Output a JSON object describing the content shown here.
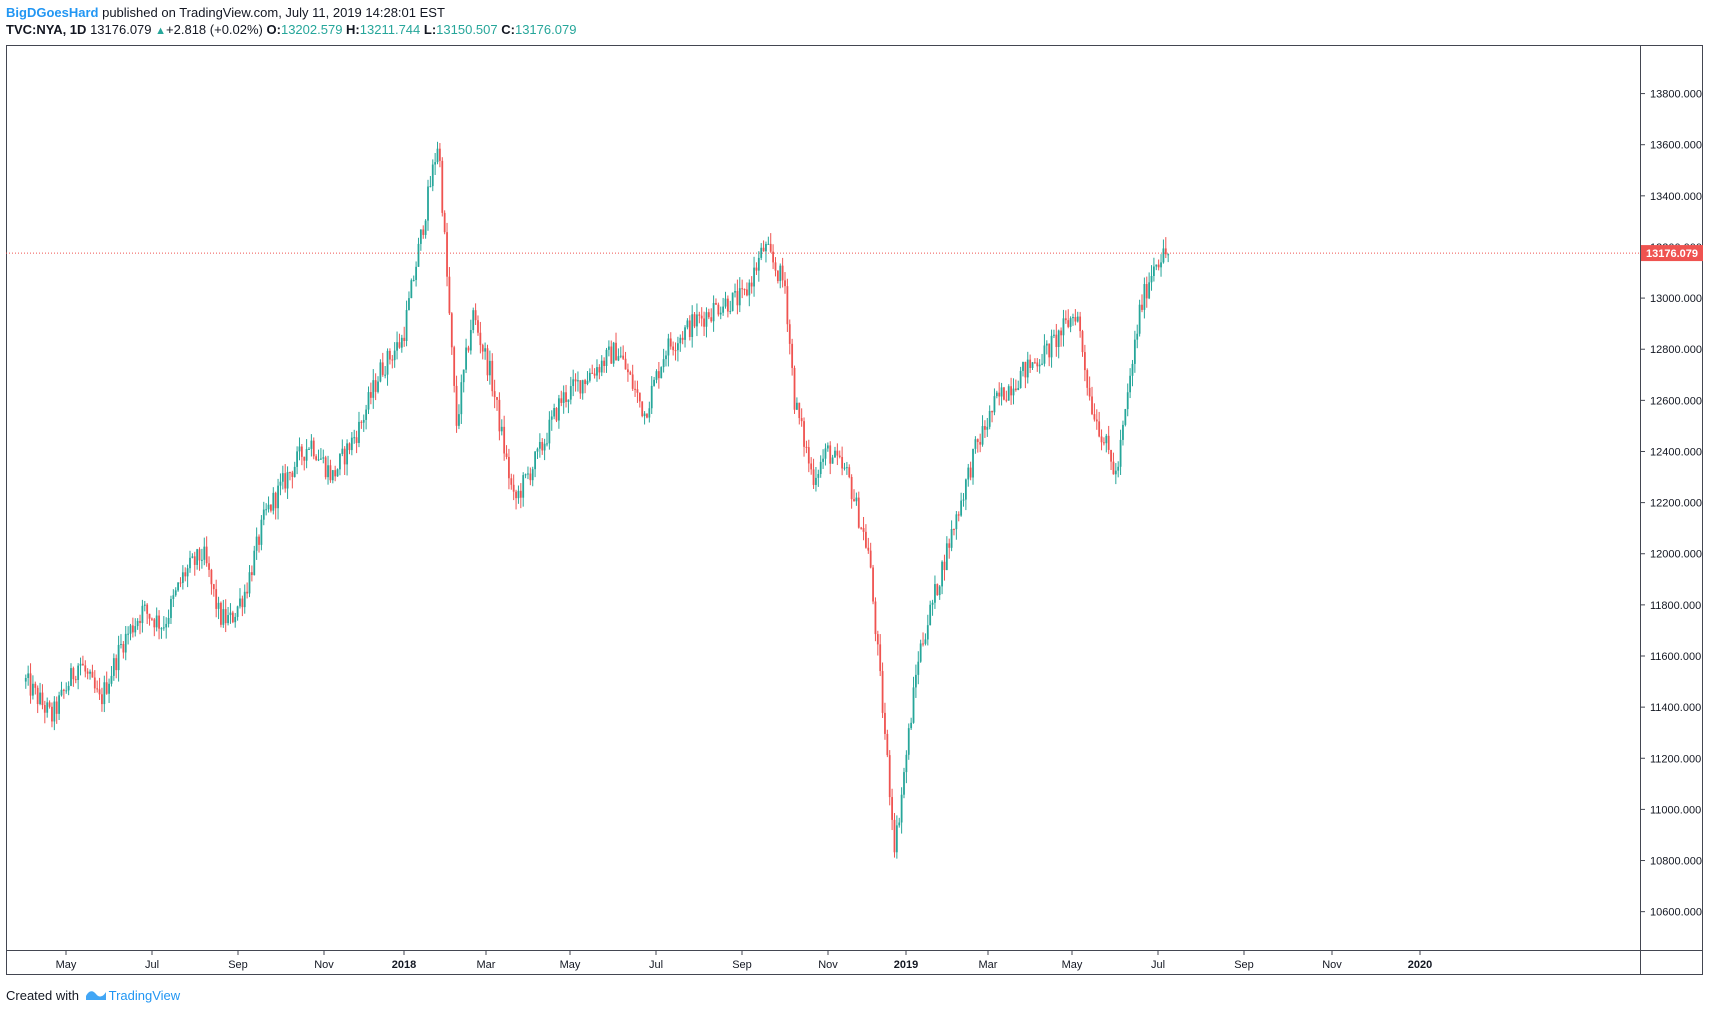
{
  "header": {
    "author": "BigDGoesHard",
    "published_text": "published on TradingView.com, July 11, 2019 14:28:01 EST",
    "symbol_line": "TVC:NYA, 1D",
    "last": "13176.079",
    "change": "+2.818 (+0.02%)",
    "o_label": "O:",
    "o_value": "13202.579",
    "h_label": "H:",
    "h_value": "13211.744",
    "l_label": "L:",
    "l_value": "13150.507",
    "c_label": "C:",
    "c_value": "13176.079"
  },
  "footer": {
    "created_with": "Created with",
    "brand": "TradingView"
  },
  "colors": {
    "up": "#26a69a",
    "down": "#ef5350",
    "price_line": "#ef5350",
    "axis": "#787b86",
    "border": "#434651"
  },
  "chart_data": {
    "type": "candlestick",
    "symbol": "TVC:NYA",
    "interval": "1D",
    "y_axis": {
      "ylim": [
        10450,
        13990
      ],
      "ticks": [
        "10600.000",
        "10800.000",
        "11000.000",
        "11200.000",
        "11400.000",
        "11600.000",
        "11800.000",
        "12000.000",
        "12200.000",
        "12400.000",
        "12600.000",
        "12800.000",
        "13000.000",
        "13200.000",
        "13400.000",
        "13600.000",
        "13800.000"
      ],
      "position": "right"
    },
    "x_axis": {
      "tick_labels": [
        "May",
        "Jul",
        "Sep",
        "Nov",
        "2018",
        "Mar",
        "May",
        "Jul",
        "Sep",
        "Nov",
        "2019",
        "Mar",
        "May",
        "Jul",
        "Sep",
        "Nov",
        "2020"
      ],
      "bold_labels": [
        "2018",
        "2019",
        "2020"
      ]
    },
    "last_price_label": "13176.079",
    "last_price": 13176.079,
    "series_path": [
      [
        "2017-04-01",
        11500
      ],
      [
        "2017-04-20",
        11360
      ],
      [
        "2017-05-10",
        11580
      ],
      [
        "2017-05-25",
        11420
      ],
      [
        "2017-06-10",
        11650
      ],
      [
        "2017-06-25",
        11780
      ],
      [
        "2017-07-10",
        11720
      ],
      [
        "2017-07-25",
        11920
      ],
      [
        "2017-08-08",
        12000
      ],
      [
        "2017-08-20",
        11750
      ],
      [
        "2017-08-28",
        11740
      ],
      [
        "2017-09-08",
        11860
      ],
      [
        "2017-09-22",
        12150
      ],
      [
        "2017-10-10",
        12320
      ],
      [
        "2017-10-25",
        12440
      ],
      [
        "2017-11-10",
        12300
      ],
      [
        "2017-11-30",
        12500
      ],
      [
        "2017-12-15",
        12720
      ],
      [
        "2017-12-31",
        12840
      ],
      [
        "2018-01-12",
        13200
      ],
      [
        "2018-01-26",
        13620
      ],
      [
        "2018-02-08",
        12500
      ],
      [
        "2018-02-20",
        12940
      ],
      [
        "2018-03-05",
        12700
      ],
      [
        "2018-03-22",
        12200
      ],
      [
        "2018-04-10",
        12400
      ],
      [
        "2018-04-25",
        12600
      ],
      [
        "2018-05-15",
        12700
      ],
      [
        "2018-06-05",
        12800
      ],
      [
        "2018-06-25",
        12550
      ],
      [
        "2018-07-10",
        12800
      ],
      [
        "2018-07-30",
        12900
      ],
      [
        "2018-08-20",
        12980
      ],
      [
        "2018-09-05",
        13000
      ],
      [
        "2018-09-20",
        13200
      ],
      [
        "2018-10-05",
        13050
      ],
      [
        "2018-10-12",
        12600
      ],
      [
        "2018-10-25",
        12300
      ],
      [
        "2018-11-05",
        12400
      ],
      [
        "2018-11-20",
        12300
      ],
      [
        "2018-12-05",
        12000
      ],
      [
        "2018-12-24",
        10850
      ],
      [
        "2019-01-10",
        11600
      ],
      [
        "2019-01-30",
        12000
      ],
      [
        "2019-02-20",
        12400
      ],
      [
        "2019-03-08",
        12600
      ],
      [
        "2019-03-25",
        12700
      ],
      [
        "2019-04-15",
        12800
      ],
      [
        "2019-05-05",
        12950
      ],
      [
        "2019-05-15",
        12600
      ],
      [
        "2019-06-03",
        12300
      ],
      [
        "2019-06-20",
        12950
      ],
      [
        "2019-07-01",
        13150
      ],
      [
        "2019-07-11",
        13176.079
      ]
    ],
    "annotations": {
      "peak_2018_01": 13640,
      "low_2018_12": 10730,
      "last_close": 13176.079
    }
  }
}
